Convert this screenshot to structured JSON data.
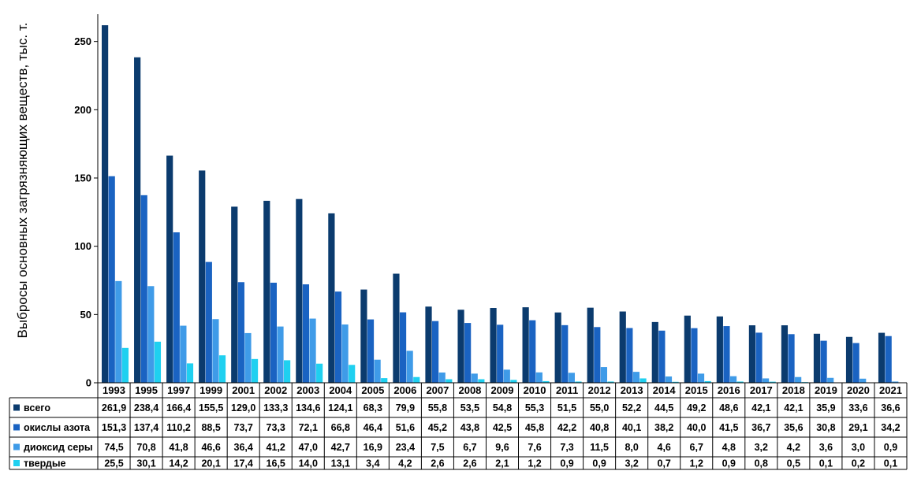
{
  "chart_data": {
    "type": "bar",
    "ylabel": "Выбросы основных загрязняющих веществ, тыс. т.",
    "ylim": [
      0,
      270
    ],
    "yticks": [
      0,
      50,
      100,
      150,
      200,
      250
    ],
    "grid": false,
    "legend": "data-table-left",
    "categories": [
      "1993",
      "1995",
      "1997",
      "1999",
      "2001",
      "2002",
      "2003",
      "2004",
      "2005",
      "2006",
      "2007",
      "2008",
      "2009",
      "2010",
      "2011",
      "2012",
      "2013",
      "2014",
      "2015",
      "2016",
      "2017",
      "2018",
      "2019",
      "2020",
      "2021"
    ],
    "series": [
      {
        "name": "всего",
        "color": "#0b3b6e",
        "values": [
          261.9,
          238.4,
          166.4,
          155.5,
          129.0,
          133.3,
          134.6,
          124.1,
          68.3,
          79.9,
          55.8,
          53.5,
          54.8,
          55.3,
          51.5,
          55.0,
          52.2,
          44.5,
          49.2,
          48.6,
          42.1,
          42.1,
          35.9,
          33.6,
          36.6
        ],
        "labels": [
          "261,9",
          "238,4",
          "166,4",
          "155,5",
          "129,0",
          "133,3",
          "134,6",
          "124,1",
          "68,3",
          "79,9",
          "55,8",
          "53,5",
          "54,8",
          "55,3",
          "51,5",
          "55,0",
          "52,2",
          "44,5",
          "49,2",
          "48,6",
          "42,1",
          "42,1",
          "35,9",
          "33,6",
          "36,6"
        ]
      },
      {
        "name": "окислы азота",
        "color": "#1a63c2",
        "values": [
          151.3,
          137.4,
          110.2,
          88.5,
          73.7,
          73.3,
          72.1,
          66.8,
          46.4,
          51.6,
          45.2,
          43.8,
          42.5,
          45.8,
          42.2,
          40.8,
          40.1,
          38.2,
          40.0,
          41.5,
          36.7,
          35.6,
          30.8,
          29.1,
          34.2
        ],
        "labels": [
          "151,3",
          "137,4",
          "110,2",
          "88,5",
          "73,7",
          "73,3",
          "72,1",
          "66,8",
          "46,4",
          "51,6",
          "45,2",
          "43,8",
          "42,5",
          "45,8",
          "42,2",
          "40,8",
          "40,1",
          "38,2",
          "40,0",
          "41,5",
          "36,7",
          "35,6",
          "30,8",
          "29,1",
          "34,2"
        ]
      },
      {
        "name": "диоксид серы",
        "color": "#3f9be8",
        "values": [
          74.5,
          70.8,
          41.8,
          46.6,
          36.4,
          41.2,
          47.0,
          42.7,
          16.9,
          23.4,
          7.5,
          6.7,
          9.6,
          7.6,
          7.3,
          11.5,
          8.0,
          4.6,
          6.7,
          4.8,
          3.2,
          4.2,
          3.6,
          3.0,
          0.9
        ],
        "labels": [
          "74,5",
          "70,8",
          "41,8",
          "46,6",
          "36,4",
          "41,2",
          "47,0",
          "42,7",
          "16,9",
          "23,4",
          "7,5",
          "6,7",
          "9,6",
          "7,6",
          "7,3",
          "11,5",
          "8,0",
          "4,6",
          "6,7",
          "4,8",
          "3,2",
          "4,2",
          "3,6",
          "3,0",
          "0,9"
        ]
      },
      {
        "name": "твердые",
        "color": "#1fd0f0",
        "values": [
          25.5,
          30.1,
          14.2,
          20.1,
          17.4,
          16.5,
          14.0,
          13.1,
          3.4,
          4.2,
          2.6,
          2.6,
          2.1,
          1.2,
          0.9,
          0.9,
          3.2,
          0.7,
          1.2,
          0.9,
          0.8,
          0.5,
          0.1,
          0.2,
          0.1
        ],
        "labels": [
          "25,5",
          "30,1",
          "14,2",
          "20,1",
          "17,4",
          "16,5",
          "14,0",
          "13,1",
          "3,4",
          "4,2",
          "2,6",
          "2,6",
          "2,1",
          "1,2",
          "0,9",
          "0,9",
          "3,2",
          "0,7",
          "1,2",
          "0,9",
          "0,8",
          "0,5",
          "0,1",
          "0,2",
          "0,1"
        ]
      }
    ]
  }
}
